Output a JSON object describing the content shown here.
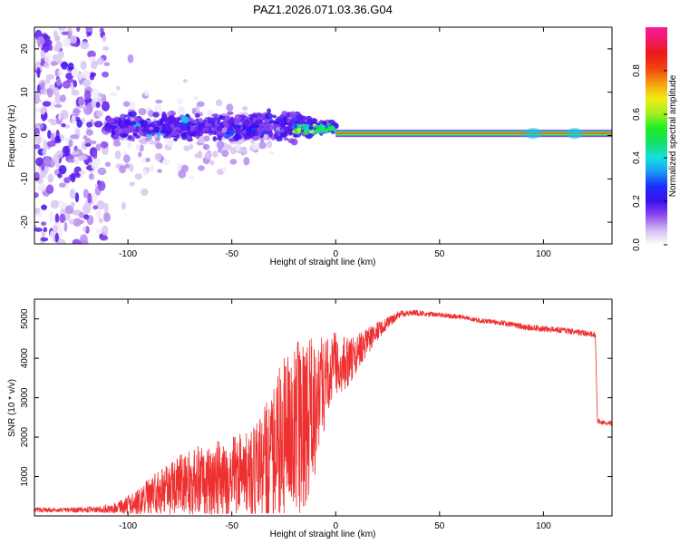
{
  "title": "PAZ1.2026.071.03.36.G04",
  "chart_data": [
    {
      "type": "heatmap",
      "xlabel": "Height of straight line (km)",
      "ylabel": "Frequency (Hz)",
      "xlim": [
        -145,
        133
      ],
      "ylim": [
        -25,
        25
      ],
      "xticks": [
        -100,
        -50,
        0,
        50,
        100
      ],
      "yticks": [
        -20,
        -10,
        0,
        10,
        20
      ],
      "colorbar": {
        "label": "Normalized spectral amplitude",
        "ticks": [
          0.0,
          0.2,
          0.4,
          0.6,
          0.8
        ],
        "range": [
          0,
          1
        ]
      },
      "features": {
        "scatter_region_km": [
          -145,
          -110
        ],
        "noisy_band_km": [
          -110,
          -20
        ],
        "converging_km": [
          -20,
          0
        ],
        "steady_tone_km": [
          0,
          133
        ],
        "steady_tone_freq_hz": 0.5
      }
    },
    {
      "type": "line",
      "xlabel": "Height of straight line (km)",
      "ylabel": "SNR (10 * v/v)",
      "xlim": [
        -145,
        133
      ],
      "ylim": [
        0,
        5500
      ],
      "xticks": [
        -100,
        -50,
        0,
        50,
        100
      ],
      "yticks": [
        1000,
        2000,
        3000,
        4000,
        5000
      ],
      "series": [
        {
          "name": "SNR",
          "color": "#ee3030",
          "x": [
            -145,
            -130,
            -115,
            -105,
            -95,
            -85,
            -75,
            -65,
            -55,
            -45,
            -38,
            -32,
            -26,
            -20,
            -15,
            -10,
            -5,
            0,
            5,
            10,
            15,
            20,
            25,
            30,
            35,
            40,
            50,
            60,
            70,
            80,
            90,
            100,
            110,
            118,
            124,
            125,
            126,
            130,
            133
          ],
          "mean": [
            150,
            150,
            160,
            200,
            350,
            600,
            800,
            900,
            950,
            1000,
            1050,
            1400,
            2000,
            2200,
            2300,
            2800,
            3500,
            3900,
            3900,
            4100,
            4400,
            4700,
            4900,
            5100,
            5150,
            5150,
            5100,
            5050,
            4950,
            4900,
            4800,
            4750,
            4700,
            4650,
            4600,
            4600,
            2400,
            2350,
            2350
          ],
          "spread": [
            60,
            60,
            80,
            150,
            350,
            600,
            750,
            900,
            1000,
            1100,
            1300,
            1700,
            2000,
            2200,
            2200,
            1800,
            1200,
            800,
            700,
            500,
            350,
            250,
            150,
            100,
            80,
            70,
            60,
            60,
            60,
            70,
            80,
            80,
            80,
            80,
            80,
            80,
            80,
            60,
            60
          ]
        }
      ]
    }
  ]
}
